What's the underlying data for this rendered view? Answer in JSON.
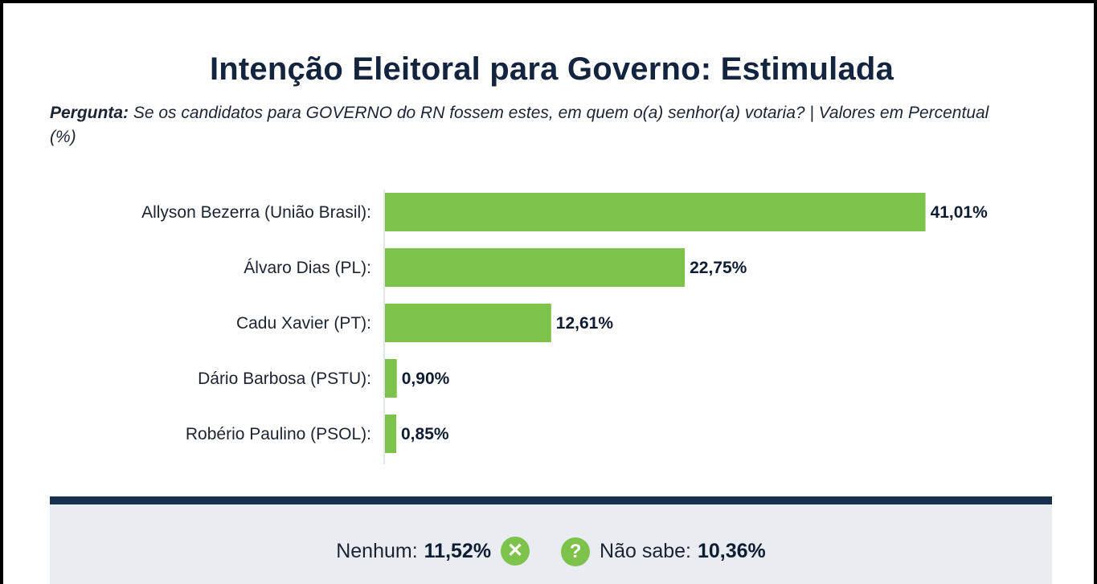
{
  "title": "Intenção Eleitoral para Governo: Estimulada",
  "question": {
    "label": "Pergunta:",
    "text": " Se os candidatos para GOVERNO do RN fossem estes, em quem o(a) senhor(a) votaria? | Valores em Percentual (%)"
  },
  "chart_data": {
    "type": "bar",
    "orientation": "horizontal",
    "categories": [
      "Allyson Bezerra (União Brasil):",
      "Álvaro Dias (PL):",
      "Cadu Xavier (PT):",
      "Dário Barbosa (PSTU):",
      "Robério Paulino (PSOL):"
    ],
    "values": [
      41.01,
      22.75,
      12.61,
      0.9,
      0.85
    ],
    "value_labels": [
      "41,01%",
      "22,75%",
      "12,61%",
      "0,90%",
      "0,85%"
    ],
    "unit": "%",
    "bar_color": "#7dc24a",
    "grid": false
  },
  "footer": {
    "none_label": "Nenhum:",
    "none_value": "11,52%",
    "none_icon": "x-circle-icon",
    "dont_know_label": "Não sabe:",
    "dont_know_value": "10,36%",
    "dont_know_icon": "question-circle-icon"
  },
  "colors": {
    "title": "#13243f",
    "bar": "#7dc24a",
    "divider": "#17314d",
    "footer_bg": "#e9ecf1"
  }
}
